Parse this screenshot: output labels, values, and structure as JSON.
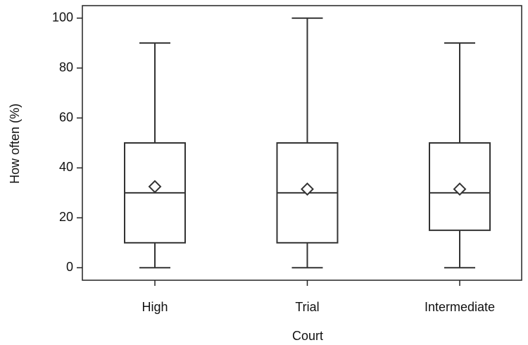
{
  "chart_data": {
    "type": "box",
    "x_label": "Court",
    "y_label": "How often (%)",
    "categories": [
      "High",
      "Trial",
      "Intermediate"
    ],
    "min": [
      0,
      0,
      0
    ],
    "q1": [
      10,
      10,
      15
    ],
    "median": [
      30,
      30,
      30
    ],
    "q3": [
      50,
      50,
      50
    ],
    "max": [
      90,
      100,
      90
    ],
    "mean": [
      32.5,
      31.5,
      31.5
    ],
    "ylim": [
      -5,
      105
    ],
    "yticks": [
      0,
      20,
      40,
      60,
      80,
      100
    ],
    "color": "#333333"
  }
}
